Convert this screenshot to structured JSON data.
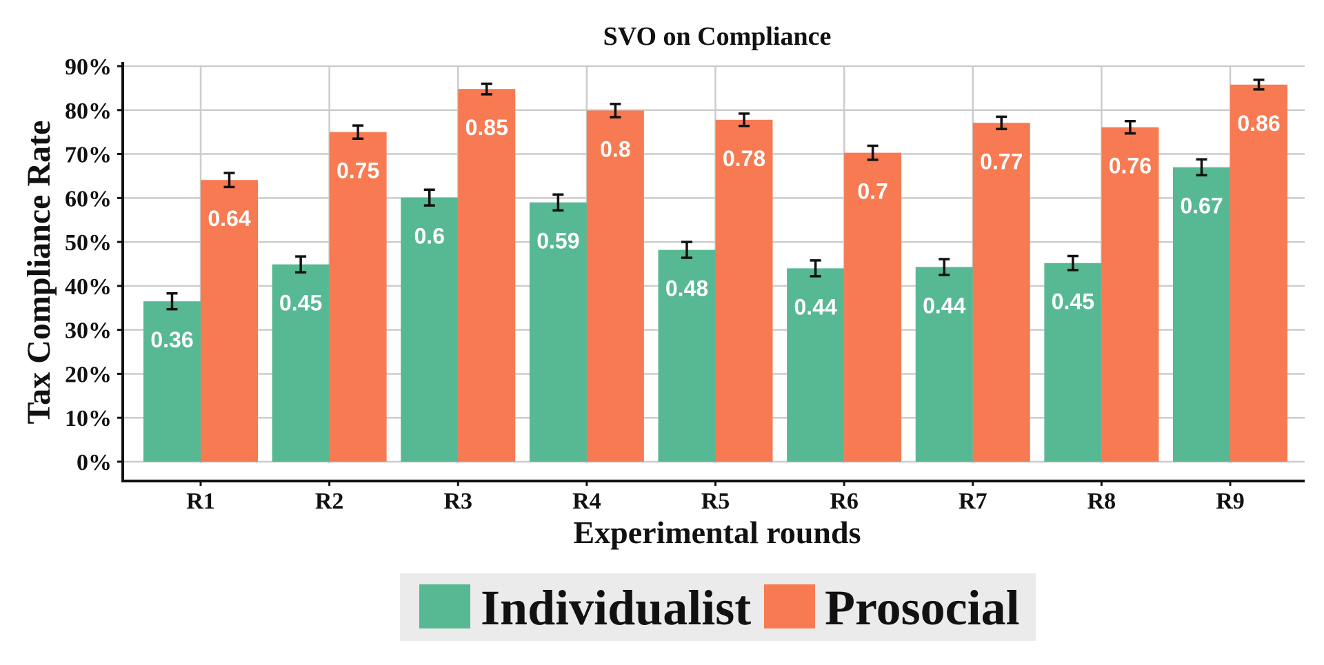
{
  "chart_data": {
    "type": "bar",
    "title": "SVO on Compliance",
    "xlabel": "Experimental rounds",
    "ylabel": "Tax Compliance Rate",
    "categories": [
      "R1",
      "R2",
      "R3",
      "R4",
      "R5",
      "R6",
      "R7",
      "R8",
      "R9"
    ],
    "ylim": [
      0,
      0.9
    ],
    "yticks": [
      {
        "value": 0,
        "label": "0%"
      },
      {
        "value": 0.1,
        "label": "10%"
      },
      {
        "value": 0.2,
        "label": "20%"
      },
      {
        "value": 0.3,
        "label": "30%"
      },
      {
        "value": 0.4,
        "label": "40%"
      },
      {
        "value": 0.5,
        "label": "50%"
      },
      {
        "value": 0.6,
        "label": "60%"
      },
      {
        "value": 0.7,
        "label": "70%"
      },
      {
        "value": 0.8,
        "label": "80%"
      },
      {
        "value": 0.9,
        "label": "90%"
      }
    ],
    "grid": true,
    "legend_position": "bottom-center",
    "error_bars": true,
    "series": [
      {
        "name": "Individualist",
        "color": "#57b894",
        "values": [
          0.365,
          0.449,
          0.601,
          0.59,
          0.482,
          0.44,
          0.443,
          0.452,
          0.67
        ],
        "labels": [
          "0.36",
          "0.45",
          "0.6",
          "0.59",
          "0.48",
          "0.44",
          "0.44",
          "0.45",
          "0.67"
        ],
        "errors": [
          0.018,
          0.018,
          0.018,
          0.018,
          0.018,
          0.018,
          0.018,
          0.016,
          0.018
        ]
      },
      {
        "name": "Prosocial",
        "color": "#f77a52",
        "values": [
          0.641,
          0.75,
          0.848,
          0.799,
          0.778,
          0.703,
          0.771,
          0.761,
          0.858
        ],
        "labels": [
          "0.64",
          "0.75",
          "0.85",
          "0.8",
          "0.78",
          "0.7",
          "0.77",
          "0.76",
          "0.86"
        ],
        "errors": [
          0.016,
          0.015,
          0.012,
          0.015,
          0.014,
          0.016,
          0.014,
          0.014,
          0.011
        ]
      }
    ]
  }
}
